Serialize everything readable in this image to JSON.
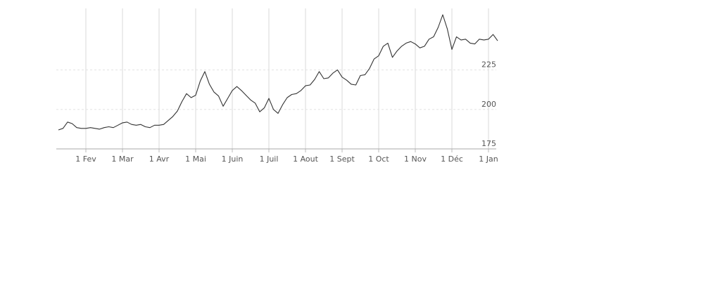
{
  "chart_data": {
    "type": "line",
    "categories": [
      null,
      null,
      null,
      null,
      null,
      null,
      "1 Fev",
      null,
      null,
      null,
      null,
      null,
      null,
      null,
      "1 Mar",
      null,
      null,
      null,
      null,
      null,
      null,
      null,
      "1 Avr",
      null,
      null,
      null,
      null,
      null,
      null,
      null,
      "1 Mai",
      null,
      null,
      null,
      null,
      null,
      null,
      null,
      "1 Juin",
      null,
      null,
      null,
      null,
      null,
      null,
      null,
      "1 Juil",
      null,
      null,
      null,
      null,
      null,
      null,
      null,
      "1 Aout",
      null,
      null,
      null,
      null,
      null,
      null,
      null,
      "1 Sept",
      null,
      null,
      null,
      null,
      null,
      null,
      null,
      "1 Oct",
      null,
      null,
      null,
      null,
      null,
      null,
      null,
      "1 Nov",
      null,
      null,
      null,
      null,
      null,
      null,
      null,
      "1 Déc",
      null,
      null,
      null,
      null,
      null,
      null,
      null,
      "1 Jan",
      null,
      null
    ],
    "values": [
      187,
      188,
      192,
      191,
      188.5,
      188,
      188,
      188.5,
      188,
      187.5,
      188.5,
      189,
      188.5,
      190,
      191.5,
      192,
      190.5,
      190,
      190.5,
      189,
      188.5,
      190,
      190,
      190.5,
      193,
      195.5,
      199,
      205,
      210,
      207.5,
      209,
      218,
      224,
      216,
      211,
      208.5,
      202,
      207,
      212,
      214.5,
      212,
      209,
      206,
      204,
      198.5,
      201,
      207,
      200,
      197.5,
      203,
      207.5,
      209.5,
      210,
      212,
      215,
      215.5,
      219,
      224,
      219.5,
      220,
      223,
      225,
      220.5,
      218.5,
      216,
      215.5,
      221.5,
      222,
      226,
      232,
      234,
      240,
      242,
      233,
      237,
      240,
      242,
      243,
      241.5,
      239,
      240,
      244.5,
      246,
      252,
      260,
      251,
      238,
      246,
      244,
      244.5,
      242,
      241.5,
      244.5,
      244,
      244.5,
      247.5,
      243.5
    ],
    "color": "#333333",
    "ylim": [
      175,
      264
    ],
    "yticks": [
      175,
      200,
      225
    ],
    "grid": true
  }
}
